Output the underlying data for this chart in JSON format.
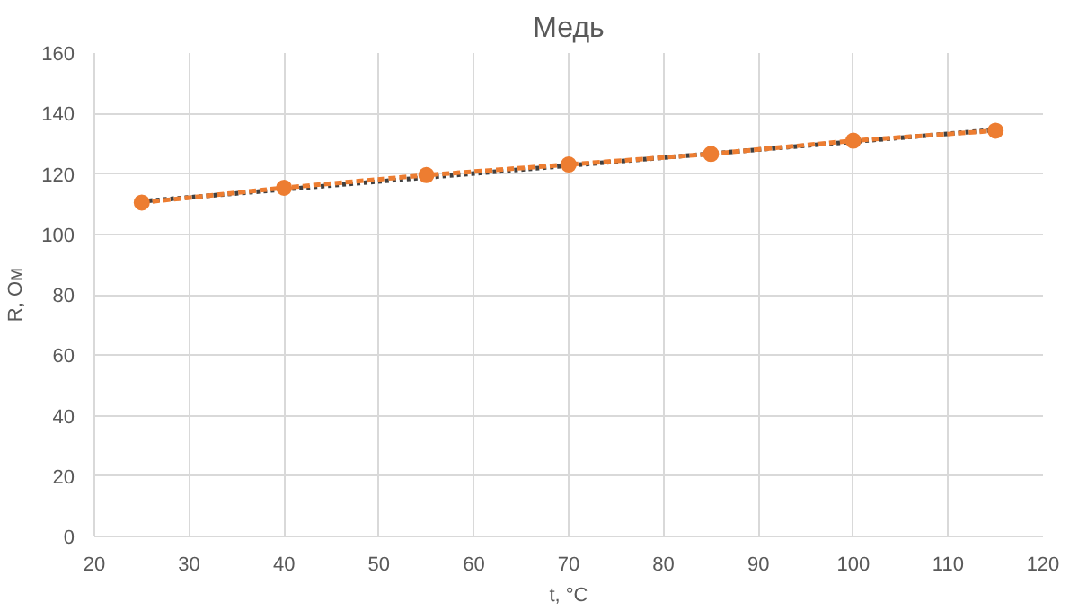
{
  "chart_data": {
    "type": "line",
    "title": "Медь",
    "xlabel": "t, °C",
    "ylabel": "R, Ом",
    "x": [
      25,
      40,
      55,
      70,
      85,
      100,
      115
    ],
    "series": [
      {
        "color": "#404040",
        "line_style": "dotted",
        "marker": "none",
        "x": [
          25,
          115
        ],
        "values": [
          110.9,
          134.6
        ]
      },
      {
        "color": "#ed7d31",
        "line_style": "dashed",
        "marker": "circle",
        "values": [
          110.5,
          115.4,
          119.6,
          123.1,
          126.6,
          131,
          134.3
        ]
      }
    ],
    "xlim": [
      20,
      120
    ],
    "xticks": [
      20,
      30,
      40,
      50,
      60,
      70,
      80,
      90,
      100,
      110,
      120
    ],
    "ylim": [
      0,
      160
    ],
    "yticks": [
      0,
      20,
      40,
      60,
      80,
      100,
      120,
      140,
      160
    ],
    "grid": true
  }
}
